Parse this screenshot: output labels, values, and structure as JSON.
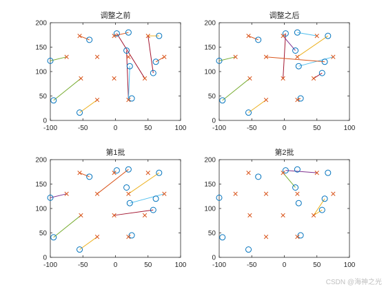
{
  "colors": {
    "circle": "#0072BD",
    "cross": "#D95319",
    "line_palette": [
      "#0072BD",
      "#D95319",
      "#EDB120",
      "#7E2F8E",
      "#77AC30",
      "#4DBEEE",
      "#A2142F"
    ]
  },
  "watermark": "CSDN @海神之光",
  "chart_data": [
    {
      "type": "scatter",
      "title": "调整之前",
      "xlim": [
        -100,
        100
      ],
      "ylim": [
        0,
        200
      ],
      "xticks": [
        -100,
        -50,
        0,
        50,
        100
      ],
      "yticks": [
        0,
        50,
        100,
        150,
        200
      ],
      "circles": [
        [
          -100,
          122
        ],
        [
          -95,
          41
        ],
        [
          -40,
          165
        ],
        [
          -55,
          16
        ],
        [
          2,
          178
        ],
        [
          20,
          180
        ],
        [
          17,
          143
        ],
        [
          22,
          111
        ],
        [
          25,
          45
        ],
        [
          58,
          97
        ],
        [
          62,
          120
        ],
        [
          67,
          173
        ]
      ],
      "crosses": [
        [
          -75,
          130
        ],
        [
          -55,
          173
        ],
        [
          -53,
          86
        ],
        [
          -28,
          42
        ],
        [
          -28,
          130
        ],
        [
          -2,
          173
        ],
        [
          -2,
          86
        ],
        [
          20,
          130
        ],
        [
          20,
          42
        ],
        [
          45,
          86
        ],
        [
          50,
          173
        ],
        [
          75,
          130
        ]
      ],
      "links": [
        {
          "c": 0,
          "x": 0,
          "color": "#77AC30"
        },
        {
          "c": 1,
          "x": 2,
          "color": "#77AC30"
        },
        {
          "c": 2,
          "x": 1,
          "color": "#D95319"
        },
        {
          "c": 3,
          "x": 3,
          "color": "#EDB120"
        },
        {
          "c": 4,
          "x": 9,
          "color": "#A2142F"
        },
        {
          "c": 5,
          "x": 5,
          "color": "#D95319"
        },
        {
          "c": 6,
          "x": 8,
          "color": "#A2142F"
        },
        {
          "c": 7,
          "x": 8,
          "color": "#4DBEEE"
        },
        {
          "c": 9,
          "x": 10,
          "color": "#A2142F"
        },
        {
          "c": 10,
          "x": 11,
          "color": "#D95319"
        },
        {
          "c": 11,
          "x": 10,
          "color": "#EDB120"
        }
      ]
    },
    {
      "type": "scatter",
      "title": "调整之后",
      "xlim": [
        -100,
        100
      ],
      "ylim": [
        0,
        200
      ],
      "xticks": [
        -100,
        -50,
        0,
        50,
        100
      ],
      "yticks": [
        0,
        50,
        100,
        150,
        200
      ],
      "circles": [
        [
          -100,
          122
        ],
        [
          -95,
          41
        ],
        [
          -40,
          165
        ],
        [
          -55,
          16
        ],
        [
          2,
          178
        ],
        [
          20,
          180
        ],
        [
          17,
          143
        ],
        [
          22,
          111
        ],
        [
          25,
          45
        ],
        [
          58,
          97
        ],
        [
          62,
          120
        ],
        [
          67,
          173
        ]
      ],
      "crosses": [
        [
          -75,
          130
        ],
        [
          -55,
          173
        ],
        [
          -53,
          86
        ],
        [
          -28,
          42
        ],
        [
          -28,
          130
        ],
        [
          -2,
          173
        ],
        [
          -2,
          86
        ],
        [
          20,
          130
        ],
        [
          20,
          42
        ],
        [
          45,
          86
        ],
        [
          50,
          173
        ],
        [
          75,
          130
        ]
      ],
      "links": [
        {
          "c": 0,
          "x": 0,
          "color": "#77AC30"
        },
        {
          "c": 1,
          "x": 2,
          "color": "#77AC30"
        },
        {
          "c": 2,
          "x": 1,
          "color": "#D95319"
        },
        {
          "c": 3,
          "x": 3,
          "color": "#EDB120"
        },
        {
          "c": 4,
          "x": 6,
          "color": "#A2142F"
        },
        {
          "c": 5,
          "x": 10,
          "color": "#4DBEEE"
        },
        {
          "c": 6,
          "x": 5,
          "color": "#7E2F8E"
        },
        {
          "c": 7,
          "x": 11,
          "color": "#4DBEEE"
        },
        {
          "c": 9,
          "x": 9,
          "color": "#A2142F"
        },
        {
          "c": 10,
          "x": 4,
          "color": "#D95319"
        },
        {
          "c": 11,
          "x": 7,
          "color": "#EDB120"
        },
        {
          "c": 8,
          "x": 8,
          "color": "#D95319"
        }
      ]
    },
    {
      "type": "scatter",
      "title": "第1批",
      "xlim": [
        -100,
        100
      ],
      "ylim": [
        0,
        200
      ],
      "xticks": [
        -100,
        -50,
        0,
        50,
        100
      ],
      "yticks": [
        0,
        50,
        100,
        150,
        200
      ],
      "circles": [
        [
          -100,
          122
        ],
        [
          -95,
          41
        ],
        [
          -40,
          165
        ],
        [
          -55,
          16
        ],
        [
          2,
          178
        ],
        [
          20,
          180
        ],
        [
          17,
          143
        ],
        [
          22,
          111
        ],
        [
          25,
          45
        ],
        [
          58,
          97
        ],
        [
          62,
          120
        ],
        [
          67,
          173
        ]
      ],
      "crosses": [
        [
          -75,
          130
        ],
        [
          -55,
          173
        ],
        [
          -53,
          86
        ],
        [
          -28,
          42
        ],
        [
          -28,
          130
        ],
        [
          -2,
          173
        ],
        [
          -2,
          86
        ],
        [
          20,
          130
        ],
        [
          20,
          42
        ],
        [
          45,
          86
        ],
        [
          50,
          173
        ],
        [
          75,
          130
        ]
      ],
      "links": [
        {
          "c": 0,
          "x": 0,
          "color": "#7E2F8E"
        },
        {
          "c": 1,
          "x": 2,
          "color": "#77AC30"
        },
        {
          "c": 2,
          "x": 1,
          "color": "#D95319"
        },
        {
          "c": 3,
          "x": 3,
          "color": "#EDB120"
        },
        {
          "c": 5,
          "x": 4,
          "color": "#D95319"
        },
        {
          "c": 7,
          "x": 11,
          "color": "#4DBEEE"
        },
        {
          "c": 9,
          "x": 6,
          "color": "#A2142F"
        },
        {
          "c": 11,
          "x": 7,
          "color": "#EDB120"
        }
      ]
    },
    {
      "type": "scatter",
      "title": "第2批",
      "xlim": [
        -100,
        100
      ],
      "ylim": [
        0,
        200
      ],
      "xticks": [
        -100,
        -50,
        0,
        50,
        100
      ],
      "yticks": [
        0,
        50,
        100,
        150,
        200
      ],
      "circles": [
        [
          -100,
          122
        ],
        [
          -95,
          41
        ],
        [
          -40,
          165
        ],
        [
          -55,
          16
        ],
        [
          2,
          178
        ],
        [
          20,
          180
        ],
        [
          17,
          143
        ],
        [
          22,
          111
        ],
        [
          25,
          45
        ],
        [
          58,
          97
        ],
        [
          62,
          120
        ],
        [
          67,
          173
        ]
      ],
      "crosses": [
        [
          -75,
          130
        ],
        [
          -55,
          173
        ],
        [
          -53,
          86
        ],
        [
          -28,
          42
        ],
        [
          -28,
          130
        ],
        [
          -2,
          173
        ],
        [
          -2,
          86
        ],
        [
          20,
          130
        ],
        [
          20,
          42
        ],
        [
          45,
          86
        ],
        [
          50,
          173
        ],
        [
          75,
          130
        ]
      ],
      "links": [
        {
          "c": 4,
          "x": 10,
          "color": "#7E2F8E"
        },
        {
          "c": 6,
          "x": 5,
          "color": "#77AC30"
        },
        {
          "c": 9,
          "x": 9,
          "color": "#EDB120"
        },
        {
          "c": 10,
          "x": 9,
          "color": "#EDB120"
        }
      ]
    }
  ]
}
